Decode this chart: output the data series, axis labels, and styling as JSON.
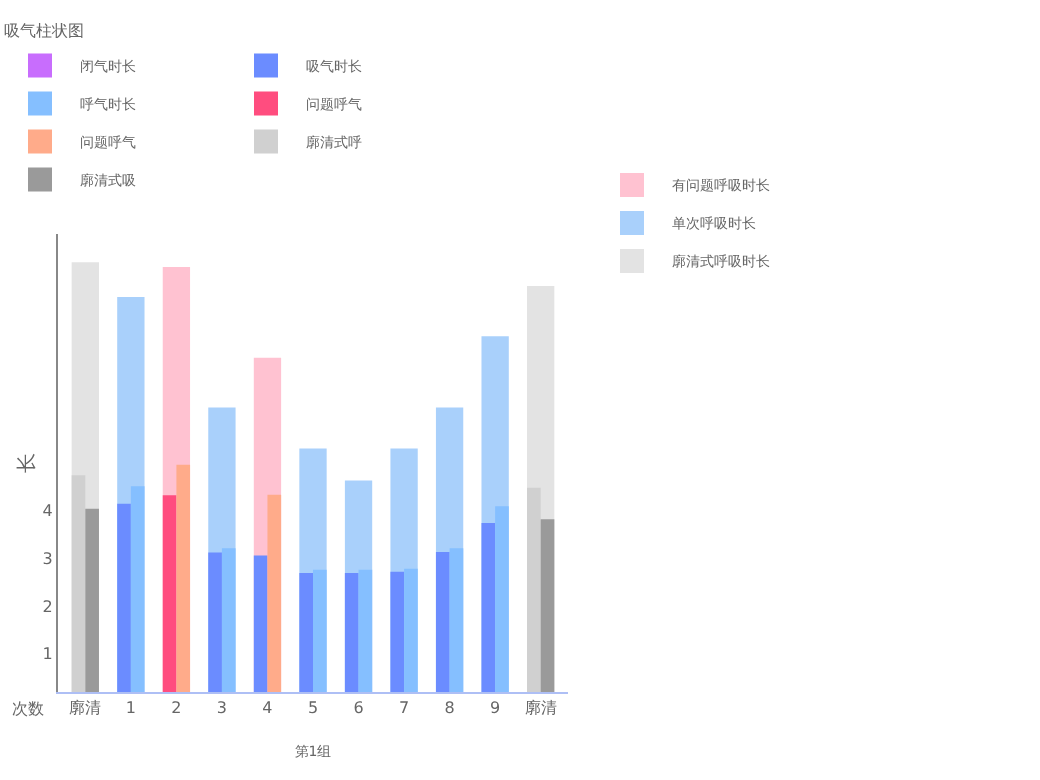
{
  "chart_data": {
    "type": "bar",
    "legend_title": "吸气柱状图",
    "ylabel": "长",
    "xlabel": "第1组",
    "annotations": [
      "次数"
    ],
    "categories": [
      "廓清",
      "1",
      "2",
      "3",
      "4",
      "5",
      "6",
      "7",
      "8",
      "9",
      "廓清"
    ],
    "series": [
      {
        "name": "有问题呼吸时长",
        "color": "#ffc2d1",
        "values": [
          null,
          null,
          9.1,
          null,
          7.2,
          null,
          null,
          null,
          null,
          null,
          null
        ]
      },
      {
        "name": "单次呼吸时长",
        "color": "#a9d0fb",
        "values": [
          null,
          8.47,
          null,
          6.16,
          null,
          5.3,
          4.63,
          5.3,
          6.16,
          7.65,
          null
        ]
      },
      {
        "name": "廓清式呼吸时长",
        "color": "#e3e3e3",
        "values": [
          9.2,
          null,
          null,
          null,
          null,
          null,
          null,
          null,
          null,
          null,
          8.7
        ]
      },
      {
        "name": "闭气时长",
        "color": "#c86dfd",
        "values": [
          null,
          null,
          null,
          null,
          null,
          null,
          null,
          null,
          null,
          null,
          null
        ]
      },
      {
        "name": "吸气时长",
        "color": "#6b8cff",
        "values": [
          null,
          4.14,
          null,
          3.12,
          3.06,
          2.69,
          2.69,
          2.72,
          3.13,
          3.74,
          null
        ]
      },
      {
        "name": "呼气时长",
        "color": "#85bfff",
        "values": [
          null,
          4.51,
          null,
          3.21,
          null,
          2.76,
          2.76,
          2.78,
          3.21,
          4.09,
          null
        ]
      },
      {
        "name": "问题呼气",
        "color": "#ff4d7f",
        "values": [
          null,
          null,
          4.32,
          null,
          null,
          null,
          null,
          null,
          null,
          null,
          null
        ]
      },
      {
        "name": "问题呼气",
        "color": "#ffab8a",
        "values": [
          null,
          null,
          4.96,
          null,
          4.33,
          null,
          null,
          null,
          null,
          null,
          null
        ]
      },
      {
        "name": "廓清式呼",
        "color": "#d0d0d0",
        "values": [
          4.74,
          null,
          null,
          null,
          null,
          null,
          null,
          null,
          null,
          null,
          4.48
        ]
      },
      {
        "name": "廓清式吸",
        "color": "#9a9a9a",
        "values": [
          4.04,
          null,
          null,
          null,
          null,
          null,
          null,
          null,
          null,
          null,
          3.82
        ]
      }
    ],
    "ylim": [
      0.2,
      9.8
    ],
    "yticks": [
      1,
      2,
      3,
      4
    ],
    "legend": "top"
  }
}
